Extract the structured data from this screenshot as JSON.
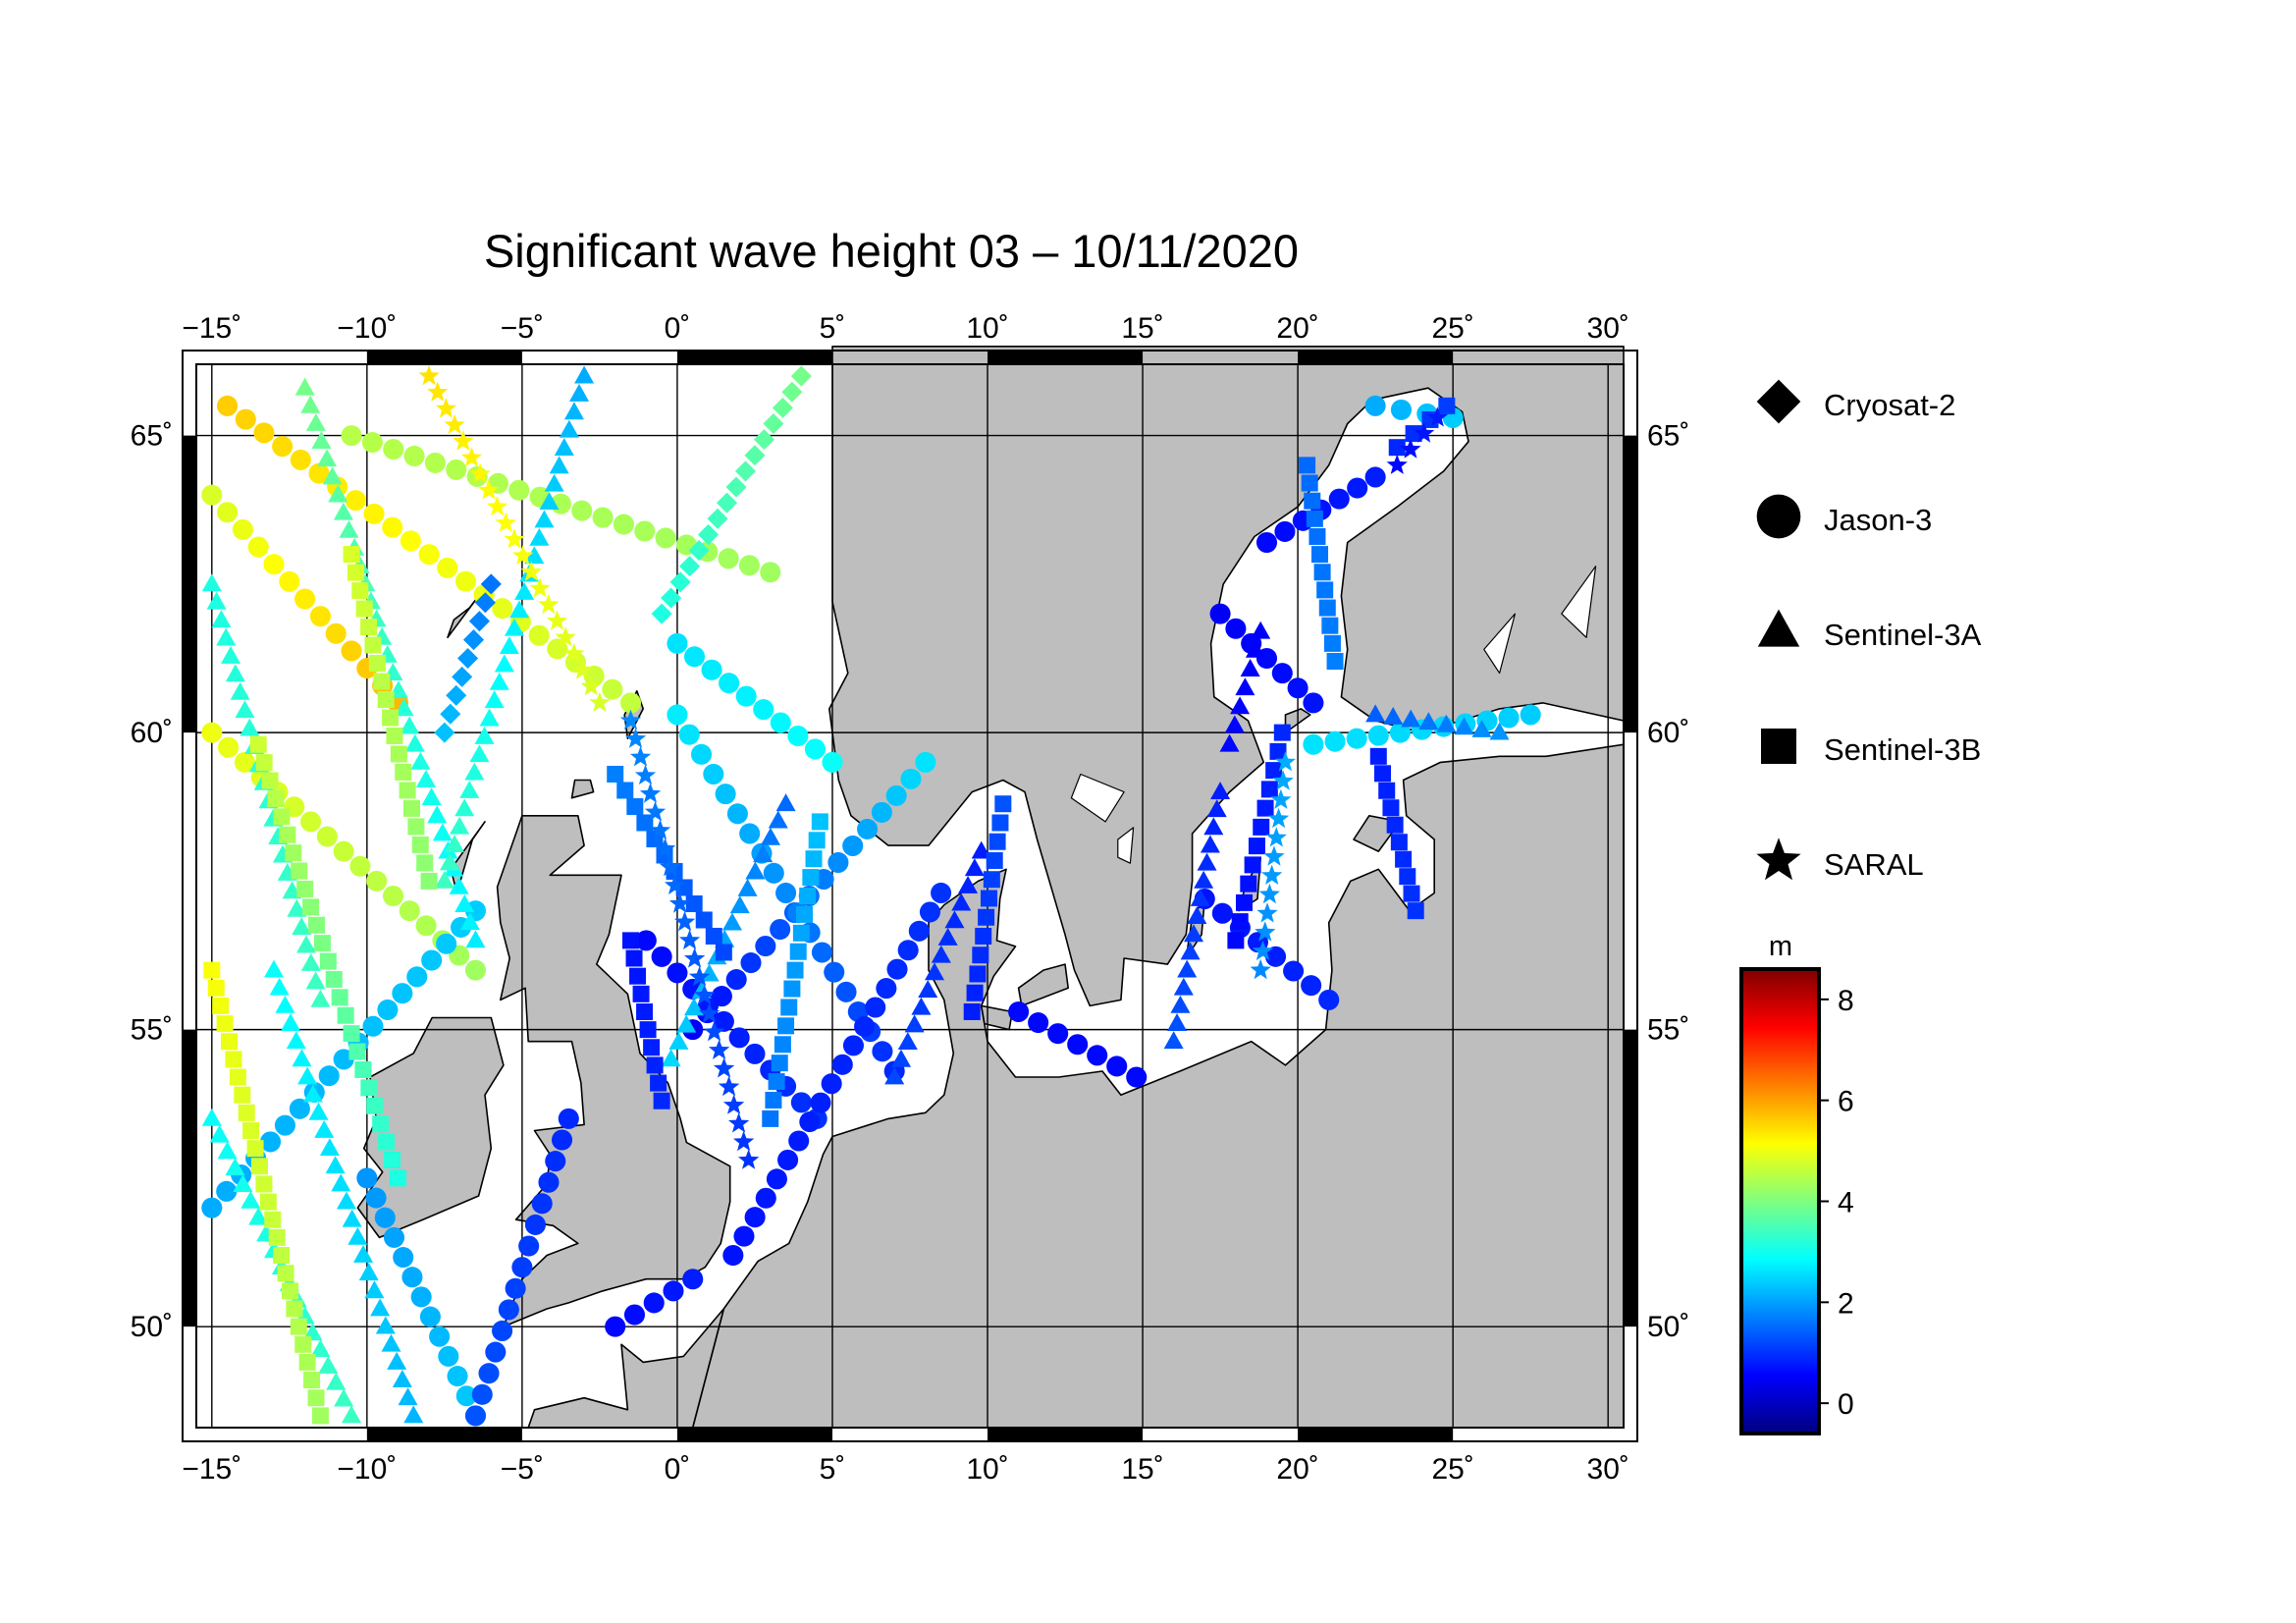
{
  "title": "Significant wave height 03 – 10/11/2020",
  "map": {
    "lon_range": [
      -15.5,
      30.5
    ],
    "lat_range": [
      48.3,
      66.2
    ],
    "lon_ticks": [
      {
        "value": -15,
        "label": "−15˚"
      },
      {
        "value": -10,
        "label": "−10˚"
      },
      {
        "value": -5,
        "label": "−5˚"
      },
      {
        "value": 0,
        "label": "0˚"
      },
      {
        "value": 5,
        "label": "5˚"
      },
      {
        "value": 10,
        "label": "10˚"
      },
      {
        "value": 15,
        "label": "15˚"
      },
      {
        "value": 20,
        "label": "20˚"
      },
      {
        "value": 25,
        "label": "25˚"
      },
      {
        "value": 30,
        "label": "30˚"
      }
    ],
    "lat_ticks": [
      {
        "value": 50,
        "label": "50˚"
      },
      {
        "value": 55,
        "label": "55˚"
      },
      {
        "value": 60,
        "label": "60˚"
      },
      {
        "value": 65,
        "label": "65˚"
      }
    ],
    "land_color": "#bebebe",
    "sea_color": "#ffffff"
  },
  "legend": {
    "items": [
      {
        "label": "Cryosat-2",
        "symbol": "diamond"
      },
      {
        "label": "Jason-3",
        "symbol": "circle"
      },
      {
        "label": "Sentinel-3A",
        "symbol": "triangle"
      },
      {
        "label": "Sentinel-3B",
        "symbol": "square"
      },
      {
        "label": "SARAL",
        "symbol": "star"
      }
    ]
  },
  "colorbar": {
    "unit": "m",
    "min": -0.6,
    "max": 8.6,
    "ticks": [
      {
        "value": 0,
        "label": "0"
      },
      {
        "value": 2,
        "label": "2"
      },
      {
        "value": 4,
        "label": "4"
      },
      {
        "value": 6,
        "label": "6"
      },
      {
        "value": 8,
        "label": "8"
      }
    ],
    "colors": [
      "#00007f",
      "#0000ff",
      "#007fff",
      "#00ffff",
      "#7fff7f",
      "#ffff00",
      "#ff7f00",
      "#ff0000",
      "#7f0000"
    ]
  },
  "tracks": [
    {
      "satellite": "Jason-3",
      "symbol": "circle",
      "from": [
        -14.5,
        65.5
      ],
      "to": [
        -1.5,
        60.5
      ],
      "hs": [
        5.6,
        4.6
      ]
    },
    {
      "satellite": "Jason-3",
      "symbol": "circle",
      "from": [
        -10.5,
        65.0
      ],
      "to": [
        3.0,
        62.7
      ],
      "hs": [
        4.5,
        4.3
      ]
    },
    {
      "satellite": "Jason-3",
      "symbol": "circle",
      "from": [
        -15.0,
        64.0
      ],
      "to": [
        -9.0,
        60.5
      ],
      "hs": [
        4.8,
        5.8
      ]
    },
    {
      "satellite": "Jason-3",
      "symbol": "circle",
      "from": [
        0.0,
        61.5
      ],
      "to": [
        5.0,
        59.5
      ],
      "hs": [
        2.6,
        2.9
      ]
    },
    {
      "satellite": "Jason-3",
      "symbol": "circle",
      "from": [
        -15.0,
        60.0
      ],
      "to": [
        -6.5,
        56.0
      ],
      "hs": [
        5.0,
        4.3
      ]
    },
    {
      "satellite": "Jason-3",
      "symbol": "circle",
      "from": [
        -15.0,
        52.0
      ],
      "to": [
        -6.5,
        57.0
      ],
      "hs": [
        2.1,
        2.4
      ]
    },
    {
      "satellite": "Jason-3",
      "symbol": "circle",
      "from": [
        -10.0,
        52.5
      ],
      "to": [
        -6.5,
        48.5
      ],
      "hs": [
        1.9,
        2.4
      ]
    },
    {
      "satellite": "Jason-3",
      "symbol": "circle",
      "from": [
        -3.5,
        53.5
      ],
      "to": [
        -6.5,
        48.5
      ],
      "hs": [
        0.9,
        1.3
      ]
    },
    {
      "satellite": "Jason-3",
      "symbol": "circle",
      "from": [
        0.5,
        55.0
      ],
      "to": [
        8.0,
        59.5
      ],
      "hs": [
        0.5,
        2.6
      ]
    },
    {
      "satellite": "Jason-3",
      "symbol": "circle",
      "from": [
        0.0,
        60.3
      ],
      "to": [
        7.0,
        54.3
      ],
      "hs": [
        2.7,
        0.9
      ]
    },
    {
      "satellite": "Jason-3",
      "symbol": "circle",
      "from": [
        -1.0,
        56.5
      ],
      "to": [
        4.5,
        53.5
      ],
      "hs": [
        0.6,
        1.0
      ]
    },
    {
      "satellite": "Jason-3",
      "symbol": "circle",
      "from": [
        -2.0,
        50.0
      ],
      "to": [
        0.5,
        50.8
      ],
      "hs": [
        0.6,
        0.8
      ]
    },
    {
      "satellite": "Jason-3",
      "symbol": "circle",
      "from": [
        1.8,
        51.2
      ],
      "to": [
        8.5,
        57.3
      ],
      "hs": [
        0.7,
        1.0
      ]
    },
    {
      "satellite": "Jason-3",
      "symbol": "circle",
      "from": [
        11.0,
        55.3
      ],
      "to": [
        14.8,
        54.2
      ],
      "hs": [
        0.6,
        0.6
      ]
    },
    {
      "satellite": "Jason-3",
      "symbol": "circle",
      "from": [
        17.0,
        57.2
      ],
      "to": [
        21.0,
        55.5
      ],
      "hs": [
        0.7,
        0.9
      ]
    },
    {
      "satellite": "Jason-3",
      "symbol": "circle",
      "from": [
        17.5,
        62.0
      ],
      "to": [
        20.5,
        60.5
      ],
      "hs": [
        0.5,
        0.7
      ]
    },
    {
      "satellite": "Jason-3",
      "symbol": "circle",
      "from": [
        19.0,
        63.2
      ],
      "to": [
        22.5,
        64.3
      ],
      "hs": [
        0.6,
        0.8
      ]
    },
    {
      "satellite": "Jason-3",
      "symbol": "circle",
      "from": [
        22.5,
        65.5
      ],
      "to": [
        25.0,
        65.3
      ],
      "hs": [
        2.1,
        2.4
      ]
    },
    {
      "satellite": "Jason-3",
      "symbol": "circle",
      "from": [
        20.5,
        59.8
      ],
      "to": [
        27.5,
        60.3
      ],
      "hs": [
        2.6,
        2.4
      ]
    },
    {
      "satellite": "Sentinel-3A",
      "symbol": "triangle",
      "from": [
        -15.0,
        53.5
      ],
      "to": [
        -10.5,
        48.5
      ],
      "hs": [
        2.9,
        3.4
      ]
    },
    {
      "satellite": "Sentinel-3A",
      "symbol": "triangle",
      "from": [
        -13.0,
        56.0
      ],
      "to": [
        -8.5,
        48.5
      ],
      "hs": [
        2.9,
        2.2
      ]
    },
    {
      "satellite": "Sentinel-3A",
      "symbol": "triangle",
      "from": [
        -15.0,
        62.5
      ],
      "to": [
        -11.5,
        55.5
      ],
      "hs": [
        3.1,
        3.4
      ]
    },
    {
      "satellite": "Sentinel-3A",
      "symbol": "triangle",
      "from": [
        -12.0,
        65.8
      ],
      "to": [
        -6.5,
        56.5
      ],
      "hs": [
        3.9,
        2.7
      ]
    },
    {
      "satellite": "Sentinel-3A",
      "symbol": "triangle",
      "from": [
        -7.5,
        57.5
      ],
      "to": [
        -3.0,
        66.0
      ],
      "hs": [
        3.4,
        2.1
      ]
    },
    {
      "satellite": "Sentinel-3A",
      "symbol": "triangle",
      "from": [
        3.5,
        58.8
      ],
      "to": [
        -0.2,
        54.5
      ],
      "hs": [
        1.5,
        2.5
      ]
    },
    {
      "satellite": "Sentinel-3A",
      "symbol": "triangle",
      "from": [
        9.8,
        58.0
      ],
      "to": [
        7.0,
        54.2
      ],
      "hs": [
        0.8,
        1.2
      ]
    },
    {
      "satellite": "Sentinel-3A",
      "symbol": "triangle",
      "from": [
        17.5,
        59.0
      ],
      "to": [
        16.0,
        54.8
      ],
      "hs": [
        0.8,
        1.3
      ]
    },
    {
      "satellite": "Sentinel-3A",
      "symbol": "triangle",
      "from": [
        18.8,
        61.7
      ],
      "to": [
        17.8,
        59.8
      ],
      "hs": [
        0.5,
        0.6
      ]
    },
    {
      "satellite": "Sentinel-3A",
      "symbol": "triangle",
      "from": [
        22.5,
        60.3
      ],
      "to": [
        26.5,
        60.0
      ],
      "hs": [
        1.4,
        1.9
      ]
    },
    {
      "satellite": "Sentinel-3B",
      "symbol": "square",
      "from": [
        -15.0,
        56.0
      ],
      "to": [
        -11.5,
        48.5
      ],
      "hs": [
        5.1,
        4.3
      ]
    },
    {
      "satellite": "Sentinel-3B",
      "symbol": "square",
      "from": [
        -13.5,
        59.8
      ],
      "to": [
        -9.0,
        52.5
      ],
      "hs": [
        4.7,
        3.1
      ]
    },
    {
      "satellite": "Sentinel-3B",
      "symbol": "square",
      "from": [
        -10.5,
        63.0
      ],
      "to": [
        -8.0,
        57.5
      ],
      "hs": [
        4.8,
        4.1
      ]
    },
    {
      "satellite": "Sentinel-3B",
      "symbol": "square",
      "from": [
        -2.0,
        59.3
      ],
      "to": [
        1.5,
        56.3
      ],
      "hs": [
        1.7,
        1.2
      ]
    },
    {
      "satellite": "Sentinel-3B",
      "symbol": "square",
      "from": [
        -1.5,
        56.5
      ],
      "to": [
        -0.5,
        53.8
      ],
      "hs": [
        0.7,
        0.9
      ]
    },
    {
      "satellite": "Sentinel-3B",
      "symbol": "square",
      "from": [
        4.6,
        58.5
      ],
      "to": [
        3.0,
        53.5
      ],
      "hs": [
        2.3,
        1.6
      ]
    },
    {
      "satellite": "Sentinel-3B",
      "symbol": "square",
      "from": [
        10.5,
        58.8
      ],
      "to": [
        9.5,
        55.3
      ],
      "hs": [
        1.3,
        0.8
      ]
    },
    {
      "satellite": "Sentinel-3B",
      "symbol": "square",
      "from": [
        18.0,
        56.5
      ],
      "to": [
        19.5,
        60.0
      ],
      "hs": [
        0.6,
        0.9
      ]
    },
    {
      "satellite": "Sentinel-3B",
      "symbol": "square",
      "from": [
        20.3,
        64.5
      ],
      "to": [
        21.2,
        61.2
      ],
      "hs": [
        1.5,
        1.7
      ]
    },
    {
      "satellite": "Sentinel-3B",
      "symbol": "square",
      "from": [
        23.2,
        64.8
      ],
      "to": [
        24.8,
        65.5
      ],
      "hs": [
        0.9,
        1.1
      ]
    },
    {
      "satellite": "Sentinel-3B",
      "symbol": "square",
      "from": [
        22.6,
        59.6
      ],
      "to": [
        23.8,
        57.0
      ],
      "hs": [
        0.8,
        1.0
      ]
    },
    {
      "satellite": "SARAL",
      "symbol": "star",
      "from": [
        -1.5,
        60.2
      ],
      "to": [
        2.3,
        52.8
      ],
      "hs": [
        1.8,
        1.0
      ]
    },
    {
      "satellite": "SARAL",
      "symbol": "star",
      "from": [
        -8.0,
        66.0
      ],
      "to": [
        -2.5,
        60.5
      ],
      "hs": [
        5.4,
        4.8
      ]
    },
    {
      "satellite": "SARAL",
      "symbol": "star",
      "from": [
        18.8,
        56.0
      ],
      "to": [
        19.6,
        59.5
      ],
      "hs": [
        1.8,
        2.1
      ]
    },
    {
      "satellite": "SARAL",
      "symbol": "star",
      "from": [
        23.2,
        64.5
      ],
      "to": [
        24.5,
        65.3
      ],
      "hs": [
        0.6,
        0.8
      ]
    },
    {
      "satellite": "Cryosat-2",
      "symbol": "diamond",
      "from": [
        4.0,
        66.0
      ],
      "to": [
        -0.5,
        62.0
      ],
      "hs": [
        3.9,
        3.1
      ]
    },
    {
      "satellite": "Cryosat-2",
      "symbol": "diamond",
      "from": [
        -6.0,
        62.5
      ],
      "to": [
        -7.5,
        60.0
      ],
      "hs": [
        1.6,
        2.3
      ]
    }
  ]
}
